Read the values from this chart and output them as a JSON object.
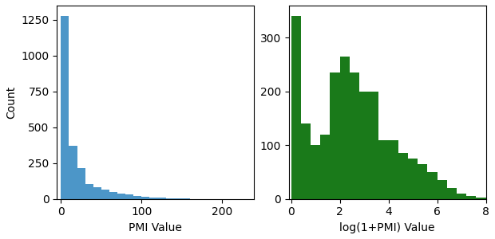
{
  "left_hist": {
    "bar_heights": [
      1280,
      370,
      215,
      105,
      80,
      65,
      50,
      40,
      30,
      20,
      15,
      10,
      8,
      5,
      3,
      2,
      1,
      1,
      1,
      0,
      0,
      0,
      0,
      1,
      0,
      1
    ],
    "bin_edges": [
      0,
      10,
      20,
      30,
      40,
      50,
      60,
      70,
      80,
      90,
      100,
      110,
      120,
      130,
      140,
      150,
      160,
      170,
      180,
      190,
      200,
      210,
      220,
      230,
      240,
      250,
      260
    ],
    "color": "#4c96c8",
    "xlabel": "PMI Value",
    "ylabel": "Count",
    "xlim": [
      -5,
      240
    ],
    "ylim": [
      0,
      1350
    ],
    "xticks": [
      0,
      100,
      200
    ],
    "yticks": [
      0,
      250,
      500,
      750,
      1000,
      1250
    ]
  },
  "right_hist": {
    "bar_heights": [
      340,
      140,
      100,
      120,
      235,
      265,
      235,
      200,
      200,
      110,
      110,
      85,
      75,
      65,
      50,
      35,
      20,
      10,
      5,
      2
    ],
    "bin_edges": [
      0,
      0.4,
      0.8,
      1.2,
      1.6,
      2.0,
      2.4,
      2.8,
      3.2,
      3.6,
      4.0,
      4.4,
      4.8,
      5.2,
      5.6,
      6.0,
      6.4,
      6.8,
      7.2,
      7.6,
      8.0
    ],
    "color": "#1a7a1a",
    "xlabel": "log(1+PMI) Value",
    "xlim": [
      -0.1,
      8
    ],
    "ylim": [
      0,
      360
    ],
    "xticks": [
      0,
      2,
      4,
      6,
      8
    ],
    "yticks": [
      0,
      100,
      200,
      300
    ]
  },
  "figsize": [
    6.2,
    3.0
  ],
  "dpi": 100
}
